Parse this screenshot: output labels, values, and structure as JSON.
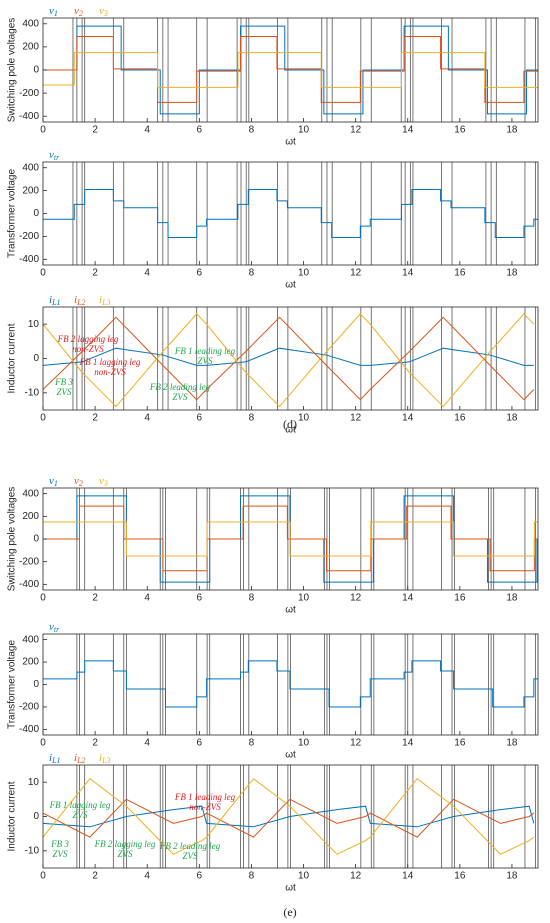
{
  "chart_data": [
    {
      "type": "line",
      "ylabel": "Switching pole voltages",
      "xlabel": "ωt",
      "xlim": [
        0,
        19
      ],
      "xticks": [
        0,
        2,
        4,
        6,
        8,
        10,
        12,
        14,
        16,
        18
      ],
      "ylim": [
        -450,
        450
      ],
      "yticks": [
        -400,
        -200,
        0,
        200,
        400
      ],
      "vlines": [
        1.15,
        1.3,
        1.5,
        1.6,
        2.7,
        3.1,
        4.4,
        4.6,
        4.8,
        5.9,
        6.3,
        7.45,
        7.6,
        7.8,
        7.9,
        9.0,
        9.4,
        10.7,
        10.9,
        11.1,
        12.2,
        12.6,
        13.75,
        13.9,
        14.1,
        14.2,
        15.3,
        15.7,
        17.0,
        17.2,
        17.4,
        18.5,
        18.9
      ],
      "series": [
        {
          "name": "v1",
          "color": "#0072bd",
          "step": true,
          "x": [
            0,
            1.3,
            3.0,
            4.5,
            6.0,
            7.58,
            9.28,
            10.78,
            12.28,
            13.86,
            15.56,
            17.06,
            18.56
          ],
          "values": [
            0,
            380,
            0,
            -380,
            0,
            380,
            0,
            -380,
            0,
            380,
            0,
            -380,
            0
          ]
        },
        {
          "name": "v2",
          "color": "#d95319",
          "step": true,
          "x": [
            0,
            1.3,
            2.7,
            4.4,
            5.9,
            7.58,
            8.98,
            10.68,
            12.18,
            13.86,
            15.26,
            16.96,
            18.46
          ],
          "values": [
            0,
            290,
            10,
            -280,
            -10,
            290,
            10,
            -280,
            -10,
            290,
            10,
            -280,
            -10
          ]
        },
        {
          "name": "v3",
          "color": "#edb120",
          "step": true,
          "x": [
            0,
            1.2,
            4.4,
            7.48,
            10.68,
            13.76,
            16.96
          ],
          "values": [
            -130,
            150,
            -150,
            150,
            -150,
            150,
            -150
          ]
        }
      ]
    },
    {
      "type": "line",
      "ylabel": "Transformer voltage",
      "xlabel": "ωt",
      "xlim": [
        0,
        19
      ],
      "xticks": [
        0,
        2,
        4,
        6,
        8,
        10,
        12,
        14,
        16,
        18
      ],
      "ylim": [
        -450,
        450
      ],
      "yticks": [
        -400,
        -200,
        0,
        200,
        400
      ],
      "series": [
        {
          "name": "vtr",
          "color": "#0072bd",
          "step": true,
          "x": [
            0,
            1.2,
            1.6,
            2.7,
            3.1,
            4.4,
            4.8,
            5.9,
            6.28,
            7.48,
            7.88,
            8.98,
            9.38,
            10.68,
            11.08,
            12.18,
            12.56,
            13.76,
            14.16,
            15.26,
            15.66,
            16.96,
            17.36,
            18.46,
            18.84
          ],
          "values": [
            -50,
            80,
            210,
            110,
            50,
            -80,
            -210,
            -110,
            -50,
            80,
            210,
            110,
            50,
            -80,
            -210,
            -110,
            -50,
            80,
            210,
            110,
            50,
            -80,
            -210,
            -110,
            -50
          ]
        }
      ]
    },
    {
      "type": "line",
      "ylabel": "Inductor current",
      "xlabel": "ωt",
      "xlim": [
        0,
        19
      ],
      "xticks": [
        0,
        2,
        4,
        6,
        8,
        10,
        12,
        14,
        16,
        18
      ],
      "ylim": [
        -15,
        15
      ],
      "yticks": [
        -10,
        0,
        10
      ],
      "series": [
        {
          "name": "iL1",
          "color": "#0072bd",
          "x": [
            0,
            1.5,
            2.8,
            4.6,
            5.9,
            6.28,
            7.78,
            9.08,
            10.88,
            12.18,
            12.56,
            14.06,
            15.36,
            17.16,
            18.46,
            18.84
          ],
          "values": [
            -2,
            -1,
            3,
            1,
            -2,
            -2,
            -1,
            3,
            1,
            -2,
            -2,
            -1,
            3,
            1,
            -2,
            -2
          ]
        },
        {
          "name": "iL2",
          "color": "#d95319",
          "x": [
            0,
            1.5,
            2.8,
            4.6,
            5.9,
            6.28,
            7.78,
            9.08,
            10.88,
            12.18,
            12.56,
            14.06,
            15.36,
            17.16,
            18.46,
            18.84
          ],
          "values": [
            -9,
            2,
            12,
            -2,
            -12,
            -9,
            2,
            12,
            -2,
            -12,
            -9,
            2,
            12,
            -2,
            -12,
            -9
          ]
        },
        {
          "name": "iL3",
          "color": "#edb120",
          "x": [
            0,
            1.5,
            2.8,
            4.6,
            5.9,
            6.28,
            7.78,
            9.08,
            10.88,
            12.18,
            12.56,
            14.06,
            15.36,
            17.16,
            18.46,
            18.84
          ],
          "values": [
            10,
            -4,
            -14,
            2,
            13,
            10,
            -4,
            -14,
            2,
            13,
            10,
            -4,
            -14,
            2,
            13,
            10
          ]
        }
      ],
      "annotations": [
        {
          "lines": [
            "FB 2 lagging leg",
            "non-ZVS"
          ],
          "color": "#e31a1c"
        },
        {
          "lines": [
            "FB 1 lagging leg",
            "non-ZVS"
          ],
          "color": "#e31a1c"
        },
        {
          "lines": [
            "FB 1 leading leg",
            "ZVS"
          ],
          "color": "#1ea44c"
        },
        {
          "lines": [
            "FB 3",
            "ZVS"
          ],
          "color": "#1ea44c"
        },
        {
          "lines": [
            "FB 2 leading leg",
            "ZVS"
          ],
          "color": "#1ea44c"
        }
      ],
      "caption": "(d)"
    },
    {
      "type": "line",
      "ylabel": "Switching pole voltages",
      "xlabel": "ωt",
      "xlim": [
        0,
        19
      ],
      "xticks": [
        0,
        2,
        4,
        6,
        8,
        10,
        12,
        14,
        16,
        18
      ],
      "ylim": [
        -450,
        450
      ],
      "yticks": [
        -400,
        -200,
        0,
        200,
        400
      ],
      "vlines": [
        1.3,
        1.4,
        1.6,
        2.7,
        3.1,
        3.2,
        4.5,
        4.6,
        4.7,
        5.9,
        6.3,
        6.4,
        7.58,
        7.7,
        7.9,
        9.0,
        9.4,
        9.5,
        10.8,
        10.9,
        11.0,
        12.2,
        12.6,
        12.7,
        13.9,
        14.0,
        14.2,
        15.3,
        15.7,
        15.8,
        17.1,
        17.2,
        17.3,
        18.5,
        18.9
      ],
      "series": [
        {
          "name": "v1",
          "color": "#0072bd",
          "step": true,
          "x": [
            0,
            1.3,
            3.2,
            4.5,
            6.4,
            7.58,
            9.48,
            10.78,
            12.68,
            13.86,
            15.76,
            17.06,
            18.96
          ],
          "values": [
            0,
            380,
            0,
            -380,
            0,
            380,
            0,
            -380,
            0,
            380,
            0,
            -380,
            0
          ]
        },
        {
          "name": "v2",
          "color": "#d95319",
          "step": true,
          "x": [
            0,
            1.4,
            3.1,
            4.6,
            6.3,
            7.68,
            9.38,
            10.88,
            12.58,
            13.96,
            15.66,
            17.16,
            18.86
          ],
          "values": [
            0,
            290,
            0,
            -280,
            0,
            290,
            0,
            -280,
            0,
            290,
            0,
            -280,
            0
          ]
        },
        {
          "name": "v3",
          "color": "#edb120",
          "step": true,
          "x": [
            0,
            3.2,
            6.3,
            9.48,
            12.58,
            15.76,
            18.86
          ],
          "values": [
            150,
            -150,
            150,
            -150,
            150,
            -150,
            150
          ]
        }
      ]
    },
    {
      "type": "line",
      "ylabel": "Transformer voltage",
      "xlabel": "ωt",
      "xlim": [
        0,
        19
      ],
      "xticks": [
        0,
        2,
        4,
        6,
        8,
        10,
        12,
        14,
        16,
        18
      ],
      "ylim": [
        -450,
        450
      ],
      "yticks": [
        -400,
        -200,
        0,
        200,
        400
      ],
      "series": [
        {
          "name": "vtr",
          "color": "#0072bd",
          "step": true,
          "x": [
            0,
            1.3,
            1.6,
            2.7,
            3.2,
            4.7,
            5.9,
            6.28,
            7.58,
            7.88,
            8.98,
            9.48,
            10.98,
            12.18,
            12.56,
            13.86,
            14.16,
            15.26,
            15.76,
            17.26,
            18.46,
            18.84
          ],
          "values": [
            50,
            110,
            210,
            120,
            -40,
            -200,
            -110,
            50,
            110,
            210,
            120,
            -40,
            -200,
            -110,
            50,
            110,
            210,
            120,
            -40,
            -200,
            -110,
            50
          ]
        }
      ]
    },
    {
      "type": "line",
      "ylabel": "Inductor current",
      "xlabel": "ωt",
      "xlim": [
        0,
        19
      ],
      "xticks": [
        0,
        2,
        4,
        6,
        8,
        10,
        12,
        14,
        16,
        18
      ],
      "ylim": [
        -15,
        15
      ],
      "yticks": [
        -10,
        0,
        10
      ],
      "series": [
        {
          "name": "iL1",
          "color": "#0072bd",
          "x": [
            0,
            1.8,
            3.2,
            5.0,
            6.1,
            6.28,
            8.08,
            9.48,
            11.28,
            12.38,
            12.56,
            14.36,
            15.76,
            17.56,
            18.66,
            18.84
          ],
          "values": [
            -2,
            -3,
            0,
            2,
            3,
            -2,
            -3,
            0,
            2,
            3,
            -2,
            -3,
            0,
            2,
            3,
            -2
          ]
        },
        {
          "name": "iL2",
          "color": "#d95319",
          "x": [
            0,
            1.8,
            3.2,
            5.0,
            6.1,
            6.28,
            8.08,
            9.48,
            11.28,
            12.38,
            12.56,
            14.36,
            15.76,
            17.56,
            18.66,
            18.84
          ],
          "values": [
            1,
            -6,
            5,
            -2,
            0,
            1,
            -6,
            5,
            -2,
            0,
            1,
            -6,
            5,
            -2,
            0,
            1
          ]
        },
        {
          "name": "iL3",
          "color": "#edb120",
          "x": [
            0,
            1.8,
            3.2,
            5.0,
            6.1,
            6.28,
            8.08,
            9.48,
            11.28,
            12.38,
            12.56,
            14.36,
            15.76,
            17.56,
            18.66,
            18.84
          ],
          "values": [
            -6,
            11,
            3,
            -11,
            -7,
            -6,
            11,
            3,
            -11,
            -7,
            -6,
            11,
            3,
            -11,
            -7,
            -6
          ]
        }
      ],
      "annotations": [
        {
          "lines": [
            "FB 1 lagging leg",
            "ZVS"
          ],
          "color": "#1ea44c"
        },
        {
          "lines": [
            "FB 1 leading leg",
            "non-ZVS"
          ],
          "color": "#e31a1c"
        },
        {
          "lines": [
            "FB 3",
            "ZVS"
          ],
          "color": "#1ea44c"
        },
        {
          "lines": [
            "FB 2 lagging leg",
            "ZVS"
          ],
          "color": "#1ea44c"
        },
        {
          "lines": [
            "FB 2 leading leg",
            "ZVS"
          ],
          "color": "#1ea44c"
        }
      ],
      "caption": "(e)"
    }
  ]
}
